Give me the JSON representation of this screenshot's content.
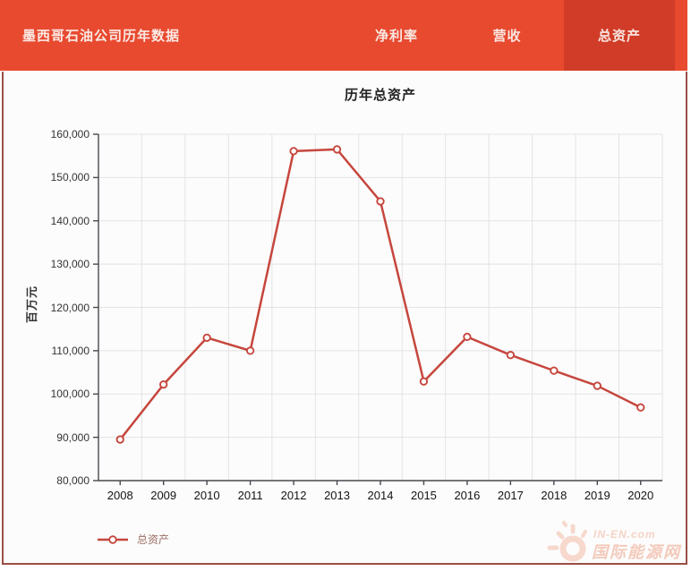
{
  "header": {
    "title": "墨西哥石油公司历年数据",
    "tabs": [
      {
        "label": "净利率",
        "active": false
      },
      {
        "label": "营收",
        "active": false
      },
      {
        "label": "总资产",
        "active": true
      }
    ]
  },
  "colors": {
    "header_bg": "#e84a2f",
    "active_tab_bg": "#d13c28",
    "panel_border": "#9a4f45",
    "series_line": "#c6463d",
    "gridline": "#e3e3e3",
    "axis": "#47494d"
  },
  "chart_data": {
    "type": "line",
    "title": "历年总资产",
    "ylabel": "百万元",
    "xlabel": "",
    "categories": [
      2008,
      2009,
      2010,
      2011,
      2012,
      2013,
      2014,
      2015,
      2016,
      2017,
      2018,
      2019,
      2020
    ],
    "series": [
      {
        "name": "总资产",
        "values": [
          89500,
          102200,
          113000,
          110000,
          156100,
          156500,
          144500,
          102900,
          113200,
          109000,
          105400,
          101900,
          96900
        ]
      }
    ],
    "ylim": [
      80000,
      160000
    ],
    "y_ticks": [
      80000,
      90000,
      100000,
      110000,
      120000,
      130000,
      140000,
      150000,
      160000
    ],
    "grid": true,
    "marker": "hollow-circle",
    "legend_position": "bottom-left"
  },
  "watermark": {
    "line1": "IN-EN.com",
    "line2": "国际能源网"
  }
}
